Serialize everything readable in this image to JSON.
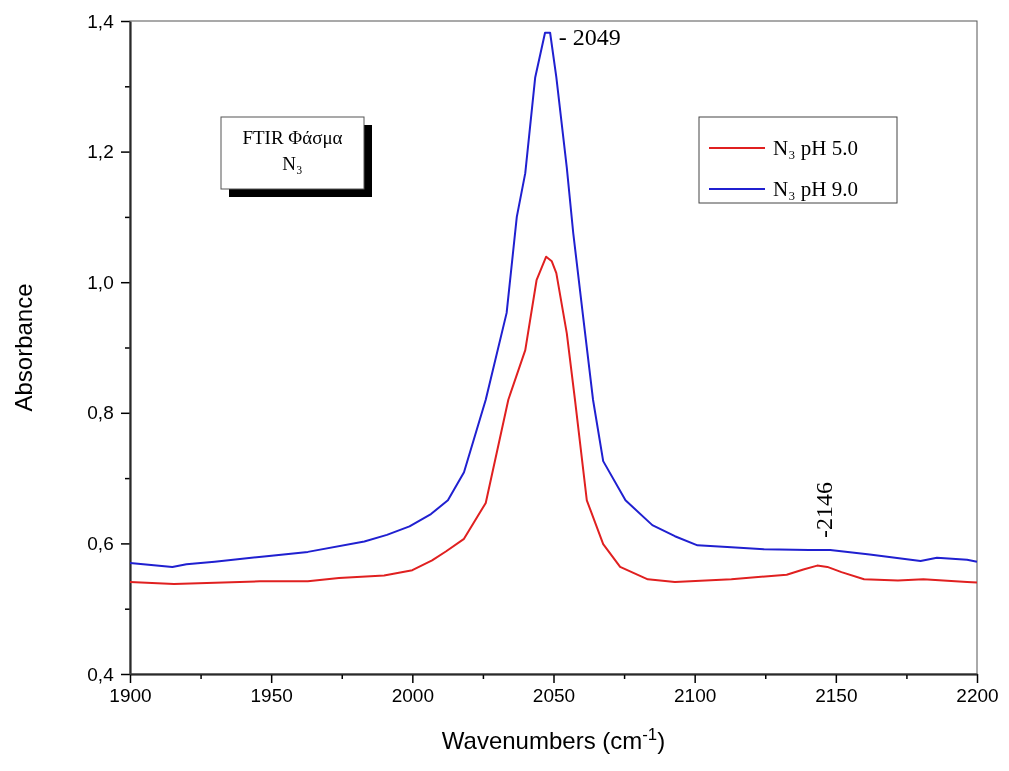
{
  "chart_data": {
    "type": "line",
    "xlabel": "Wavenumbers (cm$^{-1}$)",
    "ylabel": "Absorbance",
    "xlim": [
      1900,
      2200
    ],
    "ylim": [
      0.4,
      1.4
    ],
    "xticks": [
      1900,
      {
        "value": 1925,
        "label": null
      },
      1950,
      {
        "value": 1975,
        "label": null
      },
      2000,
      {
        "value": 2025,
        "label": null
      },
      2050,
      {
        "value": 2075,
        "label": null
      },
      2100,
      {
        "value": 2125,
        "label": null
      },
      2150,
      {
        "value": 2175,
        "label": null
      },
      2200
    ],
    "yticks": [
      {
        "value": 0.4,
        "label": "0,4"
      },
      {
        "value": 0.5,
        "label": null
      },
      {
        "value": 0.6,
        "label": "0,6"
      },
      {
        "value": 0.7,
        "label": null
      },
      {
        "value": 0.8,
        "label": "0,8"
      },
      {
        "value": 0.9,
        "label": null
      },
      {
        "value": 1.0,
        "label": "1,0"
      },
      {
        "value": 1.1,
        "label": null
      },
      {
        "value": 1.2,
        "label": "1,2"
      },
      {
        "value": 1.3,
        "label": null
      },
      {
        "value": 1.4,
        "label": "1,4"
      }
    ],
    "grid": false,
    "legend": "top right",
    "line_style": "solid",
    "marker": "none",
    "series": [
      {
        "name": "N₃ pH 5.0",
        "color": "#e02020",
        "x": [
          1900,
          1915.6,
          1946,
          1963,
          1974,
          1990,
          2000,
          2007,
          2012,
          2018.3,
          2026,
          2034,
          2040,
          2044,
          2047.4,
          2049.4,
          2051,
          2054.7,
          2057.6,
          2061.8,
          2067.6,
          2073.6,
          2083.4,
          2093,
          2113,
          2132.6,
          2138.5,
          2143.4,
          2147,
          2152,
          2160,
          2172,
          2181,
          2196.5,
          2200
        ],
        "values": [
          0.541,
          0.538,
          0.542,
          0.542,
          0.547,
          0.551,
          0.559,
          0.574,
          0.588,
          0.607,
          0.662,
          0.82,
          0.896,
          1.003,
          1.039,
          1.032,
          1.014,
          0.922,
          0.82,
          0.666,
          0.599,
          0.564,
          0.545,
          0.541,
          0.545,
          0.552,
          0.56,
          0.566,
          0.564,
          0.556,
          0.545,
          0.543,
          0.545,
          0.541,
          0.54
        ]
      },
      {
        "name": "N₃ pH 9.0",
        "color": "#2020d0",
        "x": [
          1900,
          1915,
          1920,
          1930,
          1947.5,
          1963,
          1983,
          1991,
          1999,
          2006.6,
          2012.6,
          2018.3,
          2026,
          2033.4,
          2037,
          2040,
          2043.5,
          2047,
          2048.8,
          2051,
          2054.7,
          2057,
          2060.5,
          2064,
          2067.6,
          2075.5,
          2085,
          2093,
          2101,
          2113,
          2124.6,
          2140.5,
          2148,
          2162,
          2180,
          2185.8,
          2196.5,
          2200
        ],
        "values": [
          0.57,
          0.564,
          0.568,
          0.572,
          0.58,
          0.587,
          0.603,
          0.613,
          0.626,
          0.645,
          0.666,
          0.709,
          0.82,
          0.953,
          1.1,
          1.167,
          1.313,
          1.382,
          1.382,
          1.314,
          1.176,
          1.075,
          0.947,
          0.82,
          0.726,
          0.666,
          0.628,
          0.611,
          0.597,
          0.594,
          0.591,
          0.59,
          0.59,
          0.583,
          0.573,
          0.578,
          0.575,
          0.572
        ]
      }
    ],
    "annotations": [
      "FTIR Φάσμα\nN₃",
      {
        "text": "- 2049",
        "x": 2049,
        "y": 1.382
      },
      {
        "text": "-2146",
        "x": 2146,
        "y": 0.59
      }
    ]
  }
}
